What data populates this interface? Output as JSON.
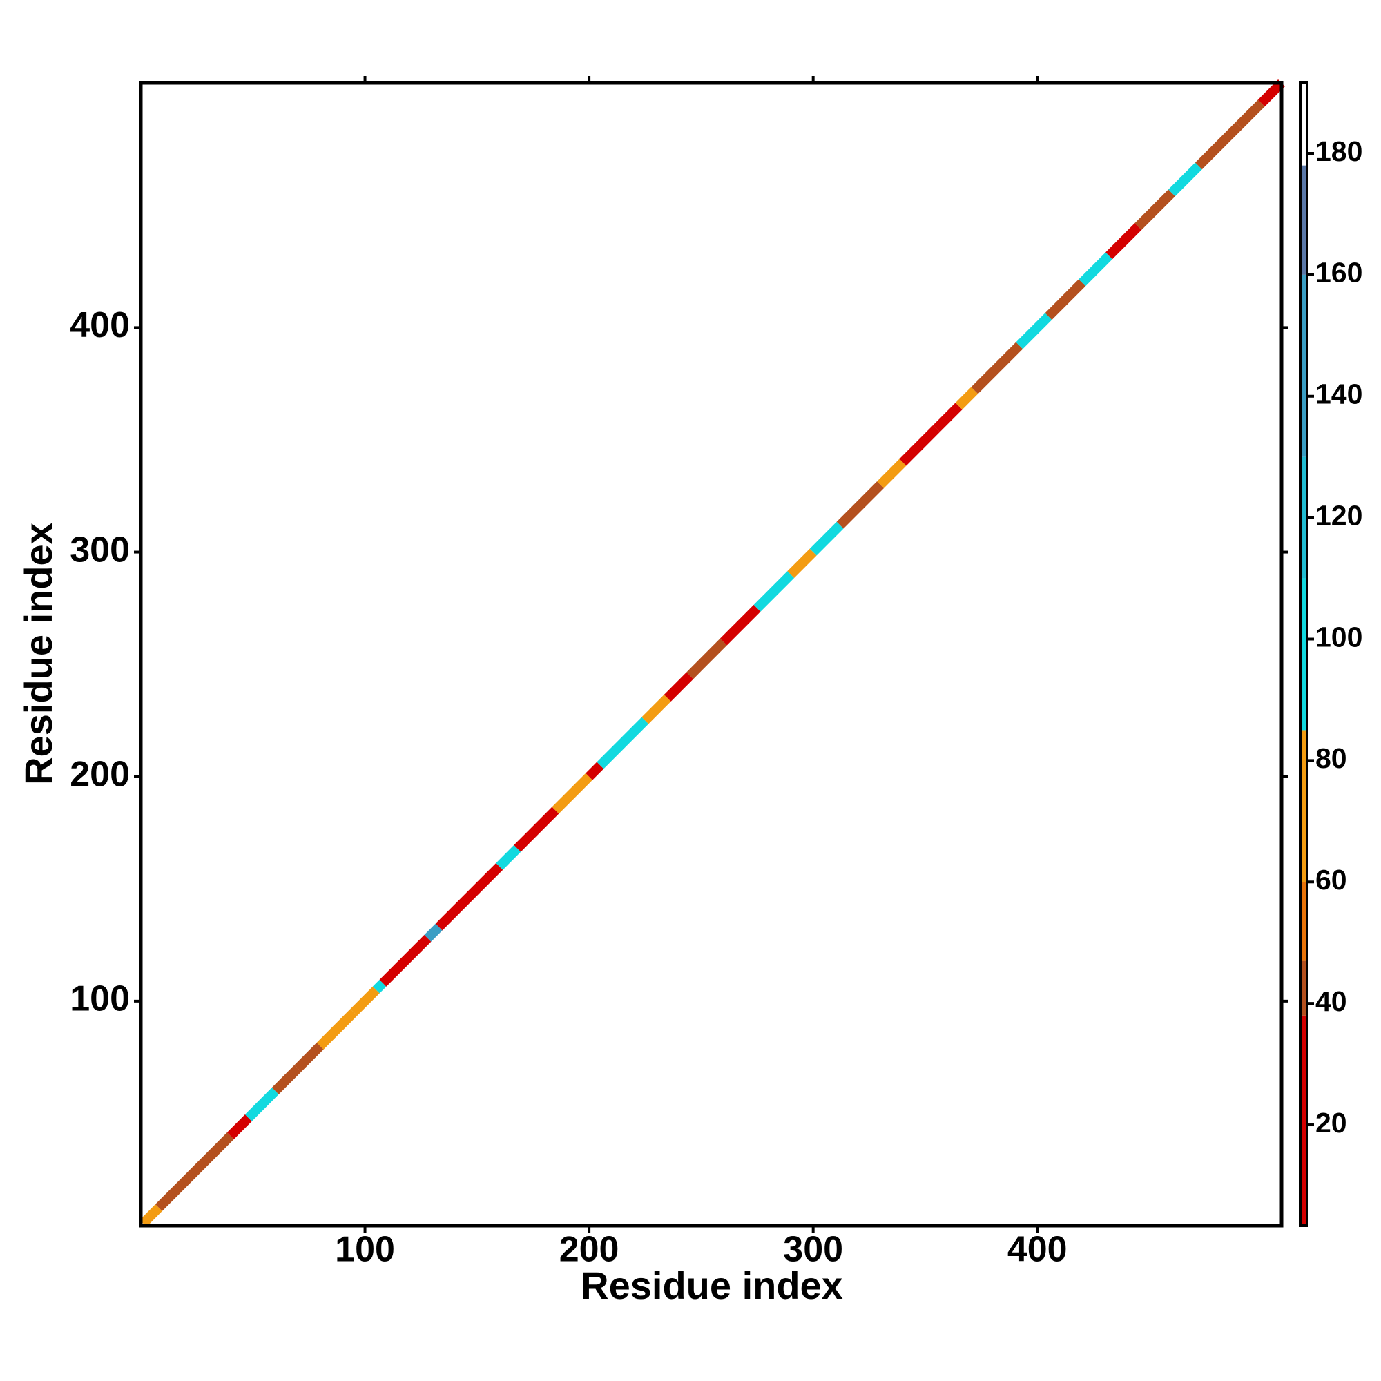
{
  "chart_data": {
    "type": "contact_map",
    "xlabel": "Residue index",
    "ylabel": "Residue index",
    "xlim": [
      0,
      509
    ],
    "ylim": [
      0,
      509
    ],
    "xticks": [
      100,
      200,
      300,
      400
    ],
    "yticks": [
      100,
      200,
      300,
      400
    ],
    "segments": {
      "start": [
        1,
        8,
        40,
        48,
        60,
        70,
        80,
        95,
        105,
        108,
        128,
        133,
        160,
        168,
        185,
        200,
        205,
        225,
        235,
        245,
        260,
        275,
        290,
        300,
        312,
        330,
        340,
        355,
        365,
        372,
        392,
        405,
        420,
        432,
        445,
        460,
        472,
        490,
        500
      ],
      "end": [
        8,
        40,
        48,
        60,
        70,
        80,
        95,
        105,
        108,
        128,
        133,
        160,
        168,
        185,
        200,
        205,
        225,
        235,
        245,
        260,
        275,
        290,
        300,
        312,
        330,
        340,
        355,
        365,
        372,
        392,
        405,
        420,
        432,
        445,
        460,
        472,
        490,
        500,
        509
      ],
      "values": [
        70,
        45,
        20,
        100,
        45,
        45,
        70,
        70,
        100,
        20,
        130,
        20,
        100,
        20,
        70,
        20,
        100,
        70,
        20,
        45,
        20,
        100,
        70,
        100,
        45,
        70,
        20,
        20,
        70,
        45,
        100,
        45,
        100,
        20,
        45,
        100,
        45,
        45,
        20
      ]
    },
    "colorbar": {
      "lim": [
        3.4,
        191.6
      ],
      "ticks": [
        20,
        40,
        60,
        80,
        100,
        120,
        140,
        160,
        180
      ],
      "bins": [
        3.4,
        38,
        47,
        60,
        85,
        110,
        130,
        160,
        178,
        191.6
      ],
      "colors": [
        "#d40000",
        "#b4501e",
        "#e8730a",
        "#f39c12",
        "#12d9df",
        "#22bcd2",
        "#3b9ec4",
        "#5a78a8",
        "#ffffff"
      ]
    }
  }
}
